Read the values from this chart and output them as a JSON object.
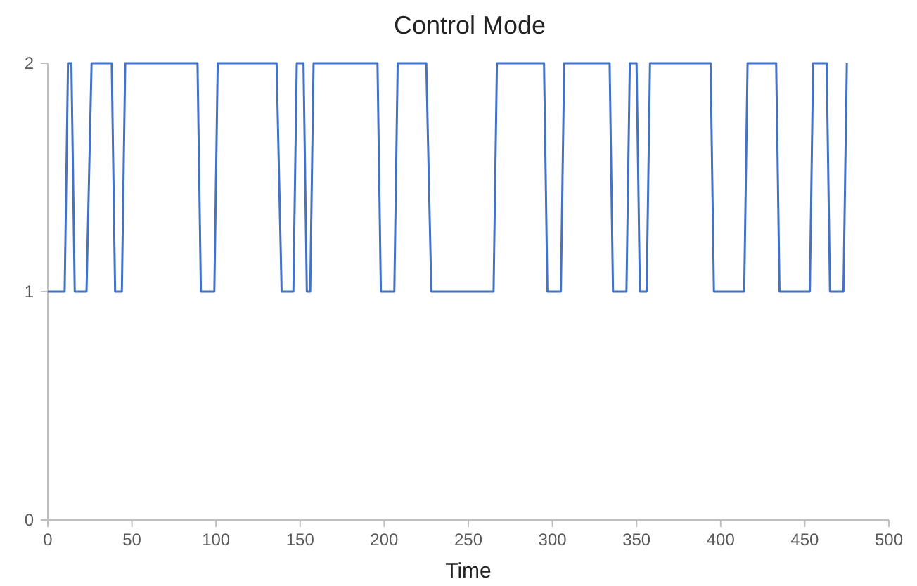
{
  "chart_data": {
    "type": "line",
    "title": "Control Mode",
    "xlabel": "Time",
    "xlim": [
      0,
      500
    ],
    "xticks": [
      0,
      50,
      100,
      150,
      200,
      250,
      300,
      350,
      400,
      450,
      500
    ],
    "ylim": [
      0,
      2
    ],
    "yticks": [
      0,
      1,
      2
    ],
    "marker": "none",
    "line_style": "solid",
    "series": [
      {
        "color": "#4472c4",
        "x": [
          0,
          10,
          12,
          14,
          16,
          23,
          26,
          38,
          40,
          44,
          46,
          89,
          91,
          99,
          101,
          136,
          139,
          146,
          148,
          152,
          154,
          156,
          158,
          196,
          198,
          206,
          208,
          225,
          228,
          265,
          267,
          295,
          297,
          305,
          307,
          334,
          336,
          344,
          346,
          350,
          352,
          356,
          358,
          394,
          396,
          414,
          416,
          433,
          435,
          453,
          455,
          463,
          465,
          473,
          475
        ],
        "values": [
          1,
          1,
          2,
          2,
          1,
          1,
          2,
          2,
          1,
          1,
          2,
          2,
          1,
          1,
          2,
          2,
          1,
          1,
          2,
          2,
          1,
          1,
          2,
          2,
          1,
          1,
          2,
          2,
          1,
          1,
          2,
          2,
          1,
          1,
          2,
          2,
          1,
          1,
          2,
          2,
          1,
          1,
          2,
          2,
          1,
          1,
          2,
          2,
          1,
          1,
          2,
          2,
          1,
          1,
          2
        ]
      }
    ]
  }
}
